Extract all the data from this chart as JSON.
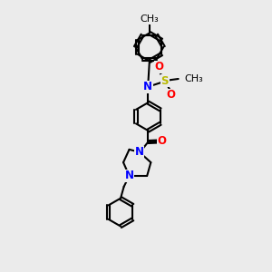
{
  "background_color": "#ebebeb",
  "bond_color": "#000000",
  "N_color": "#0000ff",
  "O_color": "#ff0000",
  "S_color": "#b8b800",
  "line_width": 1.5,
  "dbo": 0.055,
  "font_size": 8.5,
  "figsize": [
    3.0,
    3.0
  ],
  "dpi": 100,
  "xlim": [
    0,
    10
  ],
  "ylim": [
    0,
    10
  ]
}
